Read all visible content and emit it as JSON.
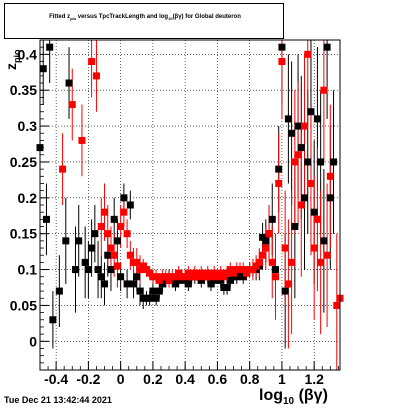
{
  "title": {
    "prefix": "Fitted  z",
    "sub": "pio",
    "mid": "  versus TpcTrackLength and log",
    "sub2": "10",
    "suffix": "(βγ) for Global deuteron"
  },
  "footer": {
    "timestamp": "Tue Dec 21 13:42:44 2021"
  },
  "chart_data": {
    "type": "scatter",
    "title": "Fitted z_pio versus TpcTrackLength and log10(βγ) for Global deuteron",
    "xlabel": "log10(βγ)",
    "ylabel": "z_pio",
    "xlim": [
      -0.5,
      1.36
    ],
    "ylim": [
      -0.04,
      0.42
    ],
    "xticks": [
      -0.4,
      -0.2,
      0,
      0.2,
      0.4,
      0.6,
      0.8,
      1,
      1.2
    ],
    "xtick_labels": [
      "-0.4",
      "-0.2",
      "0",
      "0.2",
      "0.4",
      "0.6",
      "0.8",
      "1",
      "1.2"
    ],
    "yticks": [
      0,
      0.05,
      0.1,
      0.15,
      0.2,
      0.25,
      0.3,
      0.35,
      0.4
    ],
    "ytick_labels": [
      "0",
      "0.05",
      "0.1",
      "0.15",
      "0.2",
      "0.25",
      "0.3",
      "0.35",
      "0.4"
    ],
    "grid": true,
    "colors": {
      "series_a": "#000000",
      "series_b": "#ff0000"
    },
    "series": [
      {
        "color": "#000000",
        "marker": "square",
        "points": [
          [
            -0.48,
            0.38,
            0.05
          ],
          [
            -0.44,
            0.41,
            0.05
          ],
          [
            -0.42,
            0.03,
            0.04
          ],
          [
            -0.38,
            0.07,
            0.05
          ],
          [
            -0.34,
            0.14,
            0.06
          ],
          [
            -0.32,
            0.36,
            0.05
          ],
          [
            -0.28,
            0.1,
            0.06
          ],
          [
            -0.26,
            0.14,
            0.05
          ],
          [
            -0.22,
            0.11,
            0.05
          ],
          [
            -0.2,
            0.1,
            0.04
          ],
          [
            -0.18,
            0.13,
            0.04
          ],
          [
            -0.16,
            0.15,
            0.04
          ],
          [
            -0.14,
            0.1,
            0.04
          ],
          [
            -0.12,
            0.09,
            0.03
          ],
          [
            -0.1,
            0.08,
            0.03
          ],
          [
            -0.08,
            0.12,
            0.03
          ],
          [
            -0.06,
            0.1,
            0.03
          ],
          [
            -0.04,
            0.17,
            0.03
          ],
          [
            -0.02,
            0.14,
            0.03
          ],
          [
            0.0,
            0.09,
            0.02
          ],
          [
            0.02,
            0.2,
            0.02
          ],
          [
            0.04,
            0.08,
            0.02
          ],
          [
            0.06,
            0.19,
            0.02
          ],
          [
            0.08,
            0.08,
            0.02
          ],
          [
            0.1,
            0.09,
            0.02
          ],
          [
            0.12,
            0.07,
            0.02
          ],
          [
            0.14,
            0.06,
            0.015
          ],
          [
            0.16,
            0.06,
            0.01
          ],
          [
            0.18,
            0.06,
            0.01
          ],
          [
            0.2,
            0.07,
            0.01
          ],
          [
            0.22,
            0.06,
            0.01
          ],
          [
            0.24,
            0.07,
            0.01
          ],
          [
            0.26,
            0.08,
            0.01
          ],
          [
            0.28,
            0.085,
            0.01
          ],
          [
            0.3,
            0.09,
            0.01
          ],
          [
            0.32,
            0.085,
            0.01
          ],
          [
            0.34,
            0.08,
            0.01
          ],
          [
            0.36,
            0.085,
            0.01
          ],
          [
            0.38,
            0.09,
            0.01
          ],
          [
            0.4,
            0.085,
            0.01
          ],
          [
            0.42,
            0.08,
            0.01
          ],
          [
            0.44,
            0.09,
            0.01
          ],
          [
            0.46,
            0.09,
            0.01
          ],
          [
            0.48,
            0.09,
            0.01
          ],
          [
            0.5,
            0.085,
            0.01
          ],
          [
            0.52,
            0.09,
            0.01
          ],
          [
            0.54,
            0.09,
            0.01
          ],
          [
            0.56,
            0.08,
            0.01
          ],
          [
            0.58,
            0.085,
            0.01
          ],
          [
            0.6,
            0.09,
            0.01
          ],
          [
            0.62,
            0.085,
            0.01
          ],
          [
            0.64,
            0.075,
            0.01
          ],
          [
            0.66,
            0.075,
            0.01
          ],
          [
            0.68,
            0.085,
            0.01
          ],
          [
            0.7,
            0.09,
            0.01
          ],
          [
            0.72,
            0.09,
            0.01
          ],
          [
            0.74,
            0.095,
            0.01
          ],
          [
            0.76,
            0.09,
            0.01
          ],
          [
            0.78,
            0.095,
            0.01
          ],
          [
            0.8,
            0.1,
            0.01
          ],
          [
            0.82,
            0.1,
            0.01
          ],
          [
            0.84,
            0.1,
            0.015
          ],
          [
            0.86,
            0.105,
            0.02
          ],
          [
            0.88,
            0.145,
            0.02
          ],
          [
            0.9,
            0.14,
            0.03
          ],
          [
            0.92,
            0.15,
            0.04
          ],
          [
            0.94,
            0.17,
            0.05
          ],
          [
            0.96,
            0.1,
            0.05
          ],
          [
            0.98,
            0.24,
            0.06
          ],
          [
            1.0,
            0.41,
            0.08
          ],
          [
            1.02,
            0.07,
            0.08
          ],
          [
            1.04,
            0.31,
            0.09
          ],
          [
            1.06,
            0.29,
            0.1
          ],
          [
            1.08,
            0.16,
            0.1
          ],
          [
            1.1,
            0.3,
            0.1
          ],
          [
            1.12,
            0.27,
            0.1
          ],
          [
            1.14,
            0.2,
            0.1
          ],
          [
            1.16,
            0.25,
            0.1
          ],
          [
            1.18,
            0.32,
            0.1
          ],
          [
            1.2,
            0.18,
            0.1
          ],
          [
            1.22,
            0.31,
            0.1
          ],
          [
            1.24,
            0.25,
            0.1
          ],
          [
            1.26,
            0.14,
            0.1
          ],
          [
            1.28,
            0.41,
            0.1
          ],
          [
            1.3,
            0.2,
            0.1
          ],
          [
            1.32,
            0.25,
            0.1
          ],
          [
            -0.5,
            0.27,
            0.05
          ],
          [
            -0.46,
            0.17,
            0.05
          ]
        ]
      },
      {
        "color": "#ff0000",
        "marker": "square",
        "points": [
          [
            -0.36,
            0.24,
            0.05
          ],
          [
            -0.3,
            0.33,
            0.05
          ],
          [
            -0.24,
            0.28,
            0.05
          ],
          [
            -0.18,
            0.39,
            0.05
          ],
          [
            -0.15,
            0.37,
            0.05
          ],
          [
            -0.12,
            0.16,
            0.04
          ],
          [
            -0.1,
            0.18,
            0.04
          ],
          [
            -0.08,
            0.15,
            0.04
          ],
          [
            -0.06,
            0.13,
            0.03
          ],
          [
            -0.04,
            0.12,
            0.03
          ],
          [
            -0.02,
            0.105,
            0.03
          ],
          [
            0.0,
            0.16,
            0.03
          ],
          [
            0.02,
            0.18,
            0.02
          ],
          [
            0.04,
            0.15,
            0.02
          ],
          [
            0.06,
            0.12,
            0.02
          ],
          [
            0.08,
            0.11,
            0.02
          ],
          [
            0.1,
            0.11,
            0.02
          ],
          [
            0.12,
            0.1,
            0.02
          ],
          [
            0.14,
            0.105,
            0.01
          ],
          [
            0.16,
            0.1,
            0.01
          ],
          [
            0.18,
            0.095,
            0.01
          ],
          [
            0.2,
            0.09,
            0.01
          ],
          [
            0.22,
            0.09,
            0.01
          ],
          [
            0.24,
            0.085,
            0.01
          ],
          [
            0.26,
            0.09,
            0.01
          ],
          [
            0.28,
            0.09,
            0.01
          ],
          [
            0.3,
            0.085,
            0.01
          ],
          [
            0.32,
            0.09,
            0.01
          ],
          [
            0.34,
            0.09,
            0.01
          ],
          [
            0.36,
            0.095,
            0.01
          ],
          [
            0.38,
            0.09,
            0.01
          ],
          [
            0.4,
            0.09,
            0.01
          ],
          [
            0.42,
            0.095,
            0.01
          ],
          [
            0.44,
            0.09,
            0.01
          ],
          [
            0.46,
            0.095,
            0.01
          ],
          [
            0.48,
            0.09,
            0.01
          ],
          [
            0.5,
            0.095,
            0.01
          ],
          [
            0.52,
            0.09,
            0.01
          ],
          [
            0.54,
            0.095,
            0.01
          ],
          [
            0.56,
            0.09,
            0.01
          ],
          [
            0.58,
            0.095,
            0.01
          ],
          [
            0.6,
            0.09,
            0.01
          ],
          [
            0.62,
            0.095,
            0.01
          ],
          [
            0.64,
            0.09,
            0.01
          ],
          [
            0.66,
            0.095,
            0.01
          ],
          [
            0.68,
            0.1,
            0.01
          ],
          [
            0.7,
            0.095,
            0.01
          ],
          [
            0.72,
            0.1,
            0.01
          ],
          [
            0.74,
            0.1,
            0.01
          ],
          [
            0.76,
            0.1,
            0.01
          ],
          [
            0.78,
            0.095,
            0.01
          ],
          [
            0.8,
            0.1,
            0.01
          ],
          [
            0.82,
            0.1,
            0.015
          ],
          [
            0.84,
            0.105,
            0.015
          ],
          [
            0.86,
            0.11,
            0.02
          ],
          [
            0.88,
            0.12,
            0.02
          ],
          [
            0.9,
            0.13,
            0.03
          ],
          [
            0.92,
            0.15,
            0.04
          ],
          [
            0.94,
            0.11,
            0.05
          ],
          [
            0.96,
            0.09,
            0.06
          ],
          [
            0.98,
            0.22,
            0.07
          ],
          [
            1.0,
            0.39,
            0.08
          ],
          [
            1.02,
            0.13,
            0.08
          ],
          [
            1.04,
            0.08,
            0.09
          ],
          [
            1.06,
            0.11,
            0.1
          ],
          [
            1.08,
            0.25,
            0.1
          ],
          [
            1.1,
            0.26,
            0.1
          ],
          [
            1.12,
            0.19,
            0.1
          ],
          [
            1.14,
            0.3,
            0.1
          ],
          [
            1.16,
            0.4,
            0.1
          ],
          [
            1.18,
            0.22,
            0.1
          ],
          [
            1.2,
            0.13,
            0.1
          ],
          [
            1.22,
            0.17,
            0.1
          ],
          [
            1.24,
            0.11,
            0.1
          ],
          [
            1.26,
            0.35,
            0.1
          ],
          [
            1.28,
            0.12,
            0.1
          ],
          [
            1.3,
            0.23,
            0.1
          ],
          [
            1.34,
            0.05,
            0.1
          ],
          [
            1.36,
            0.06,
            0.1
          ]
        ]
      }
    ]
  }
}
